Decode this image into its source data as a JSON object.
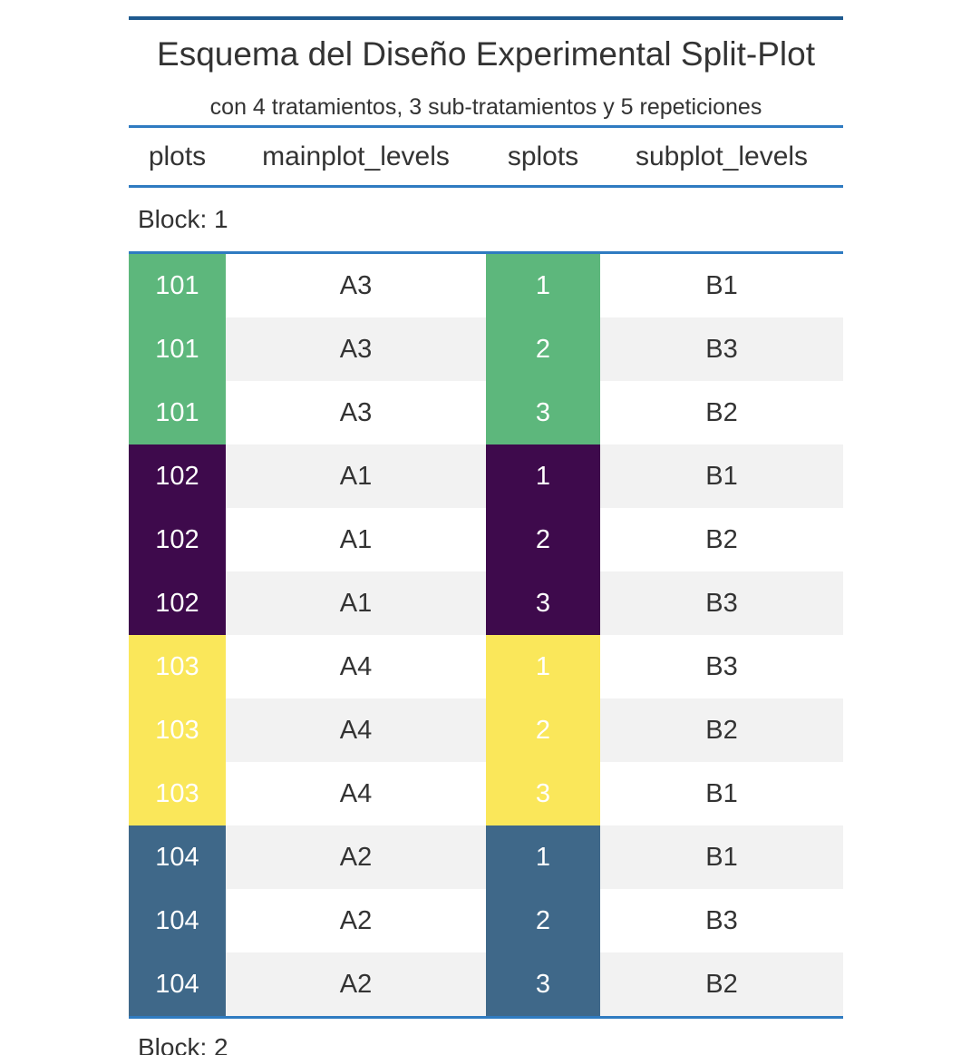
{
  "table": {
    "title": "Esquema del Diseño Experimental Split-Plot",
    "subtitle": "con 4 tratamientos, 3 sub-tratamientos y 5 repeticiones",
    "columns": [
      "plots",
      "mainplot_levels",
      "splots",
      "subplot_levels"
    ],
    "block_label": "Block: 1",
    "next_block_label": "Block: 2",
    "colors": {
      "101": "#5db77c",
      "102": "#3e0a4c",
      "103": "#fae75a",
      "104": "#3f6889",
      "rule": "#2f7bc1",
      "stripe": "#f2f2f2"
    },
    "rows": [
      {
        "plots": "101",
        "mainplot_levels": "A3",
        "splots": "1",
        "subplot_levels": "B1"
      },
      {
        "plots": "101",
        "mainplot_levels": "A3",
        "splots": "2",
        "subplot_levels": "B3"
      },
      {
        "plots": "101",
        "mainplot_levels": "A3",
        "splots": "3",
        "subplot_levels": "B2"
      },
      {
        "plots": "102",
        "mainplot_levels": "A1",
        "splots": "1",
        "subplot_levels": "B1"
      },
      {
        "plots": "102",
        "mainplot_levels": "A1",
        "splots": "2",
        "subplot_levels": "B2"
      },
      {
        "plots": "102",
        "mainplot_levels": "A1",
        "splots": "3",
        "subplot_levels": "B3"
      },
      {
        "plots": "103",
        "mainplot_levels": "A4",
        "splots": "1",
        "subplot_levels": "B3"
      },
      {
        "plots": "103",
        "mainplot_levels": "A4",
        "splots": "2",
        "subplot_levels": "B2"
      },
      {
        "plots": "103",
        "mainplot_levels": "A4",
        "splots": "3",
        "subplot_levels": "B1"
      },
      {
        "plots": "104",
        "mainplot_levels": "A2",
        "splots": "1",
        "subplot_levels": "B1"
      },
      {
        "plots": "104",
        "mainplot_levels": "A2",
        "splots": "2",
        "subplot_levels": "B3"
      },
      {
        "plots": "104",
        "mainplot_levels": "A2",
        "splots": "3",
        "subplot_levels": "B2"
      }
    ]
  }
}
